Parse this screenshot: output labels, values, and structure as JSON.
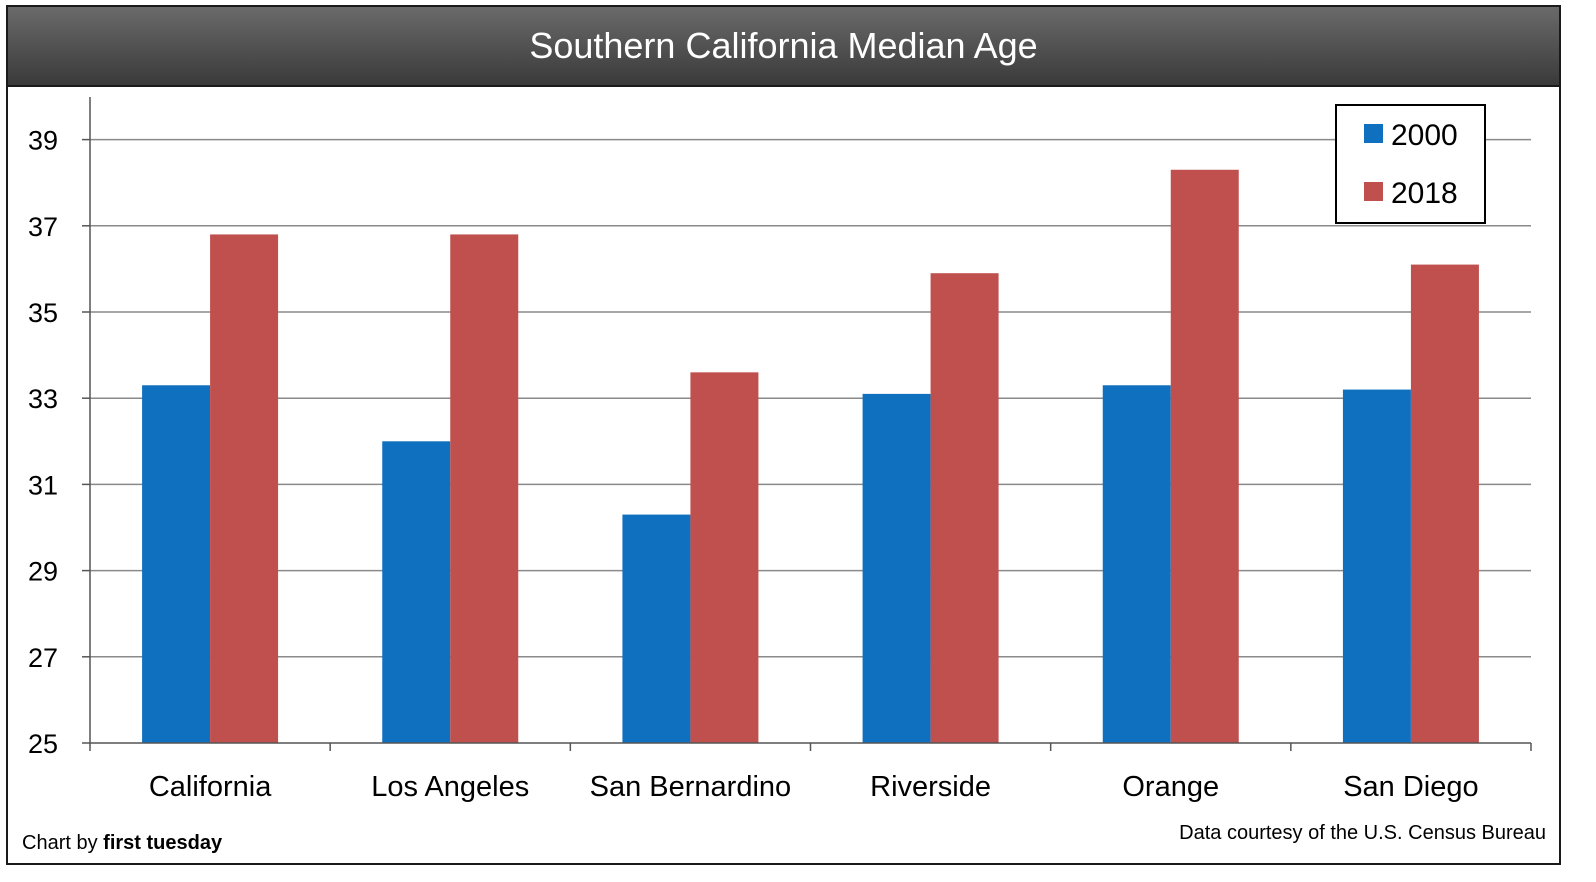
{
  "chart_data": {
    "type": "bar",
    "title": "Southern California Median Age",
    "categories": [
      "California",
      "Los Angeles",
      "San Bernardino",
      "Riverside",
      "Orange",
      "San Diego"
    ],
    "series": [
      {
        "name": "2000",
        "color": "#1070C0",
        "values": [
          33.3,
          32.0,
          30.3,
          33.1,
          33.3,
          33.2
        ]
      },
      {
        "name": "2018",
        "color": "#C0504D",
        "values": [
          36.8,
          36.8,
          33.6,
          35.9,
          38.3,
          36.1
        ]
      }
    ],
    "ylim": [
      25,
      40
    ],
    "yticks": [
      25,
      27,
      29,
      31,
      33,
      35,
      37,
      39
    ],
    "grid": true,
    "legend_position": "top-right",
    "xlabel": "",
    "ylabel": ""
  },
  "footer": {
    "credit_prefix": "Chart by",
    "credit_brand": "first tuesday",
    "source": "Data courtesy of the U.S. Census Bureau"
  }
}
